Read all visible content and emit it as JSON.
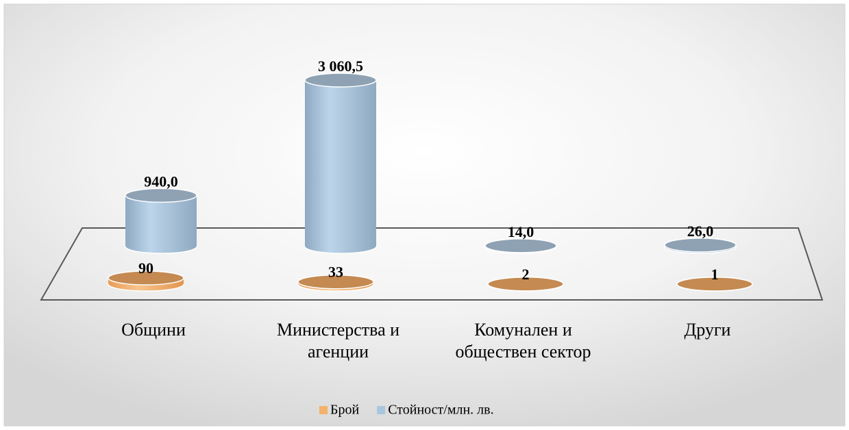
{
  "chart_data": {
    "type": "bar3d_cylinder",
    "categories": [
      "Общини",
      "Министерства и агенции",
      "Комунален и обществен сектор",
      "Други"
    ],
    "series": [
      {
        "name": "Брой",
        "color": "#f4b26b",
        "values": [
          90,
          33,
          2,
          1
        ]
      },
      {
        "name": "Стойност/млн. лв.",
        "color": "#a9c6df",
        "values": [
          940.0,
          3060.5,
          14.0,
          26.0
        ],
        "value_labels": [
          "940,0",
          "3 060,5",
          "14,0",
          "26,0"
        ]
      }
    ],
    "legend": "bottom"
  }
}
